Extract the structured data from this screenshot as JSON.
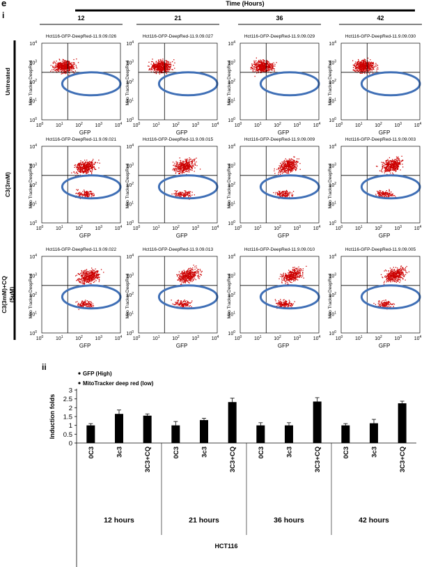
{
  "panel_letter": "e",
  "sub_i": "i",
  "sub_ii": "ii",
  "time_header": "Time (Hours)",
  "time_cols": [
    "12",
    "21",
    "36",
    "42"
  ],
  "row_labels": [
    "Untreated",
    "C3(3mM)",
    "C3(3mM)+CQ (5uM)"
  ],
  "sample_ids": [
    [
      "Hct116-GFP-DeepRed-11.9.09.026",
      "Hct116-GFP-DeepRed-11.9.09.027",
      "Hct116-GFP-DeepRed-11.9.09.029",
      "Hct116-GFP-DeepRed-11.9.09.030"
    ],
    [
      "Hct116-GFP-DeepRed-11.9.09.021",
      "Hct116-GFP-DeepRed-11.9.09.015",
      "Hct116-GFP-DeepRed-11.9.09.009",
      "Hct116-GFP-DeepRed-11.9.09.003"
    ],
    [
      "Hct116-GFP-DeepRed-11.9.09.022",
      "Hct116-GFP-DeepRed-11.9.09.013",
      "Hct116-GFP-DeepRed-11.9.09.010",
      "Hct116-GFP-DeepRed-11.9.09.005"
    ]
  ],
  "scatter_axes": {
    "xlabel": "GFP",
    "ylabel": "Mito Tracker DeepRed",
    "ticks": [
      "10",
      "10",
      "10",
      "10",
      "10"
    ],
    "exponents": [
      "0",
      "1",
      "2",
      "3",
      "4"
    ]
  },
  "colors": {
    "dots": "#cc0000",
    "ellipse": "#3f6fb6",
    "bar": "#000000"
  },
  "chart_data": {
    "type": "bar",
    "ylabel": "Induction folds",
    "ylim": [
      0,
      3
    ],
    "yticks": [
      "0",
      "0.5",
      "1",
      "1.5",
      "2",
      "2.5",
      "3"
    ],
    "legend": [
      "GFP (High)",
      "MitoTracker deep red (low)"
    ],
    "categories": [
      "0C3",
      "3c3",
      "3C3+CQ",
      "0C3",
      "3c3",
      "3C3+CQ",
      "0C3",
      "3c3",
      "3C3+CQ",
      "0C3",
      "3c3",
      "3C3+CQ"
    ],
    "values": [
      1.0,
      1.65,
      1.55,
      1.0,
      1.3,
      2.32,
      1.0,
      1.0,
      2.35,
      1.0,
      1.12,
      2.25
    ],
    "errors": [
      0.1,
      0.22,
      0.1,
      0.22,
      0.1,
      0.22,
      0.15,
      0.15,
      0.22,
      0.1,
      0.22,
      0.12
    ],
    "groups": [
      "12 hours",
      "21 hours",
      "36 hours",
      "42 hours"
    ],
    "xlabel": "HCT116"
  }
}
